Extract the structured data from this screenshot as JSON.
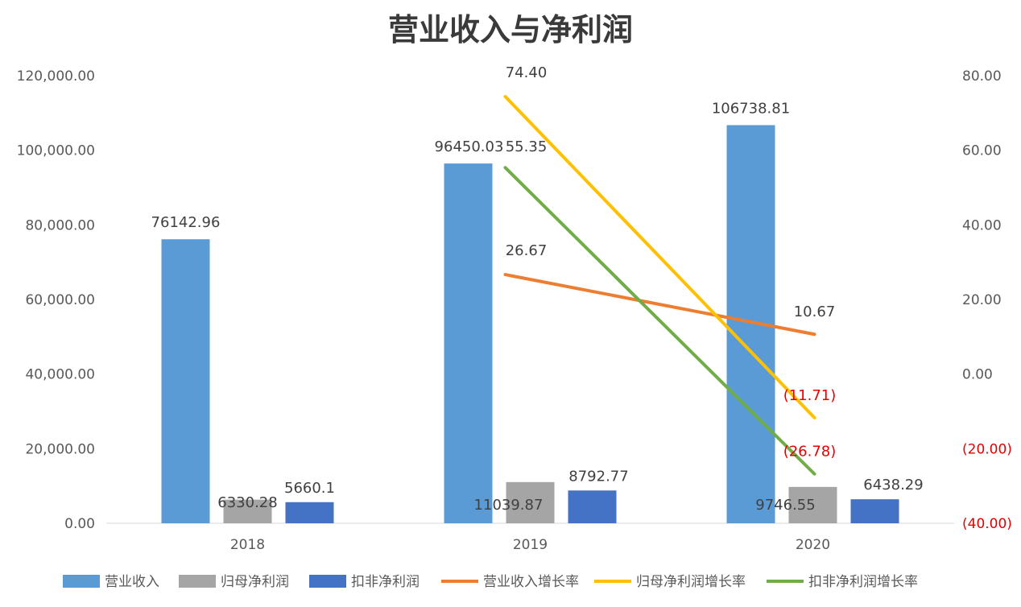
{
  "chart_data": {
    "type": "bar",
    "title": "营业收入与净利润",
    "categories": [
      "2018",
      "2019",
      "2020"
    ],
    "y_left": {
      "range": [
        0,
        120000
      ],
      "ticks": [
        0,
        20000,
        40000,
        60000,
        80000,
        100000,
        120000
      ],
      "tick_labels": [
        "0.00",
        "20,000.00",
        "40,000.00",
        "60,000.00",
        "80,000.00",
        "100,000.00",
        "120,000.00"
      ]
    },
    "y_right": {
      "range": [
        -40,
        80
      ],
      "ticks": [
        -40,
        -20,
        0,
        20,
        40,
        60,
        80
      ],
      "tick_labels": [
        "(40.00)",
        "(20.00)",
        "0.00",
        "20.00",
        "40.00",
        "60.00",
        "80.00"
      ]
    },
    "bar_series": [
      {
        "name": "营业收入",
        "color": "#5b9bd5",
        "values": [
          76142.96,
          96450.03,
          106738.81
        ],
        "labels": [
          "76142.96",
          "96450.03",
          "106738.81"
        ]
      },
      {
        "name": "归母净利润",
        "color": "#a5a5a5",
        "values": [
          6330.28,
          11039.87,
          9746.55
        ],
        "labels": [
          "6330.28",
          "11039.87",
          "9746.55"
        ]
      },
      {
        "name": "扣非净利润",
        "color": "#4472c4",
        "values": [
          5660.1,
          8792.77,
          6438.29
        ],
        "labels": [
          "5660.1",
          "8792.77",
          "6438.29"
        ]
      }
    ],
    "line_series": [
      {
        "name": "营业收入增长率",
        "color": "#ed7d31",
        "values": [
          null,
          26.67,
          10.67
        ],
        "labels": [
          null,
          "26.67",
          "10.67"
        ]
      },
      {
        "name": "归母净利润增长率",
        "color": "#ffc000",
        "values": [
          null,
          74.4,
          -11.71
        ],
        "labels": [
          null,
          "74.40",
          "(11.71)"
        ]
      },
      {
        "name": "扣非净利润增长率",
        "color": "#70ad47",
        "values": [
          null,
          55.35,
          -26.78
        ],
        "labels": [
          null,
          "55.35",
          "(26.78)"
        ]
      }
    ],
    "legend_position": "bottom",
    "grid": false
  }
}
